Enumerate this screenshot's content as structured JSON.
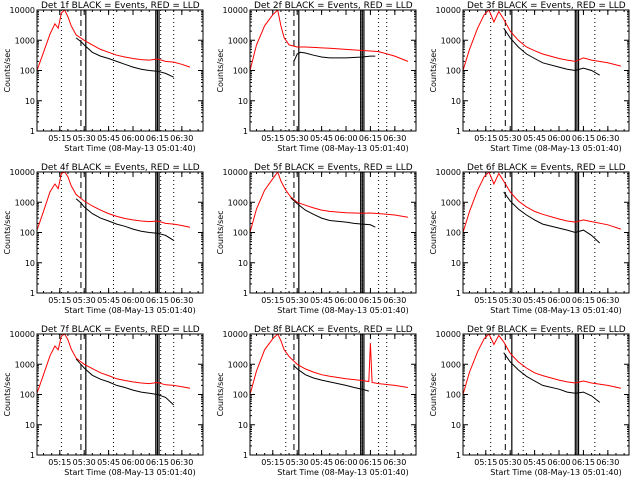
{
  "chart_data": {
    "type": "line",
    "layout": "3x3",
    "legend": "BLACK = Events, RED = LLD",
    "ylabel": "Counts/sec",
    "xlabel_prefix": "Start Time",
    "start_time_label": "(08-May-13 05:01:40)",
    "yscale": "log",
    "ylim": [
      1,
      10000
    ],
    "yticks": [
      {
        "v": 1,
        "label": "1"
      },
      {
        "v": 10,
        "label": "10"
      },
      {
        "v": 100,
        "label": "100"
      },
      {
        "v": 1000,
        "label": "1000"
      },
      {
        "v": 10000,
        "label": "10000"
      }
    ],
    "xlim": [
      "05:01",
      "06:43"
    ],
    "xticks": [
      "05:15",
      "05:30",
      "05:45",
      "06:00",
      "06:15",
      "06:30"
    ],
    "colors": {
      "events": "#000000",
      "lld": "#ff0000"
    },
    "panels": [
      {
        "title": "Det 1f",
        "vlines": {
          "dotted": [
            "05:16",
            "05:48",
            "06:17",
            "06:25"
          ],
          "dashed": [
            "05:28"
          ],
          "solid": [
            "05:31",
            "06:14",
            "06:15",
            "06:16"
          ]
        },
        "lld": {
          "x": [
            "05:01",
            "05:05",
            "05:09",
            "05:12",
            "05:14",
            "05:16",
            "05:18",
            "05:20",
            "05:22",
            "05:25",
            "05:30",
            "05:35",
            "05:40",
            "05:45",
            "05:50",
            "05:55",
            "06:00",
            "06:05",
            "06:10",
            "06:15",
            "06:20",
            "06:25",
            "06:30",
            "06:35"
          ],
          "y": [
            100,
            400,
            1600,
            3500,
            2500,
            8000,
            10000,
            6000,
            3000,
            1500,
            1000,
            700,
            500,
            400,
            320,
            280,
            250,
            230,
            220,
            240,
            200,
            190,
            160,
            130
          ]
        },
        "events": {
          "x": [
            "05:25",
            "05:28",
            "05:30",
            "05:35",
            "05:40",
            "05:45",
            "05:50",
            "05:55",
            "06:00",
            "06:05",
            "06:10",
            "06:15",
            "06:20",
            "06:25"
          ],
          "y": [
            1200,
            900,
            700,
            400,
            300,
            250,
            200,
            160,
            130,
            110,
            100,
            95,
            80,
            60
          ]
        }
      },
      {
        "title": "Det 2f",
        "vlines": {
          "dotted": [
            "05:23",
            "06:10",
            "06:20",
            "06:25"
          ],
          "dashed": [
            "05:28"
          ],
          "solid": [
            "05:31",
            "06:09",
            "06:10",
            "06:11"
          ]
        },
        "lld": {
          "x": [
            "05:01",
            "05:05",
            "05:10",
            "05:15",
            "05:18",
            "05:20",
            "05:22",
            "05:25",
            "05:30",
            "05:35",
            "05:40",
            "05:45",
            "05:50",
            "06:00",
            "06:10",
            "06:15",
            "06:20",
            "06:30",
            "06:38"
          ],
          "y": [
            100,
            700,
            3000,
            7000,
            10000,
            3000,
            1200,
            700,
            600,
            600,
            580,
            560,
            540,
            500,
            460,
            440,
            420,
            300,
            200
          ]
        },
        "events": {
          "x": [
            "05:28",
            "05:30",
            "05:32",
            "05:35",
            "05:40",
            "05:45",
            "05:50",
            "06:00",
            "06:10",
            "06:15",
            "06:18"
          ],
          "y": [
            200,
            350,
            400,
            380,
            320,
            280,
            260,
            260,
            280,
            300,
            300
          ]
        }
      },
      {
        "title": "Det 3f",
        "vlines": {
          "dotted": [
            "05:18",
            "05:38",
            "06:12",
            "06:22"
          ],
          "dashed": [
            "05:27"
          ],
          "solid": [
            "05:31",
            "06:10",
            "06:11",
            "06:12"
          ]
        },
        "lld": {
          "x": [
            "05:01",
            "05:05",
            "05:10",
            "05:14",
            "05:17",
            "05:20",
            "05:23",
            "05:26",
            "05:30",
            "05:35",
            "05:40",
            "05:45",
            "05:50",
            "06:00",
            "06:05",
            "06:10",
            "06:15",
            "06:20",
            "06:30",
            "06:38"
          ],
          "y": [
            100,
            500,
            2500,
            7000,
            10000,
            4000,
            9000,
            5000,
            2000,
            1000,
            600,
            450,
            350,
            250,
            220,
            200,
            260,
            220,
            180,
            140
          ]
        },
        "events": {
          "x": [
            "05:26",
            "05:30",
            "05:35",
            "05:40",
            "05:45",
            "05:50",
            "06:00",
            "06:05",
            "06:10",
            "06:15",
            "06:20",
            "06:25"
          ],
          "y": [
            2500,
            1200,
            600,
            350,
            250,
            180,
            130,
            110,
            100,
            120,
            100,
            70
          ]
        }
      },
      {
        "title": "Det 4f",
        "vlines": {
          "dotted": [
            "05:16",
            "05:48",
            "06:17",
            "06:25"
          ],
          "dashed": [
            "05:28"
          ],
          "solid": [
            "05:31",
            "06:14",
            "06:15",
            "06:16"
          ]
        },
        "lld": {
          "x": [
            "05:01",
            "05:05",
            "05:09",
            "05:12",
            "05:14",
            "05:16",
            "05:18",
            "05:20",
            "05:22",
            "05:25",
            "05:30",
            "05:35",
            "05:40",
            "05:45",
            "05:50",
            "05:55",
            "06:00",
            "06:05",
            "06:10",
            "06:15",
            "06:20",
            "06:25",
            "06:30",
            "06:35"
          ],
          "y": [
            120,
            500,
            2200,
            4000,
            2800,
            9000,
            10000,
            7000,
            3500,
            1800,
            1100,
            750,
            550,
            420,
            340,
            290,
            260,
            240,
            230,
            240,
            200,
            190,
            170,
            150
          ]
        },
        "events": {
          "x": [
            "05:25",
            "05:28",
            "05:30",
            "05:35",
            "05:40",
            "05:45",
            "05:50",
            "05:55",
            "06:00",
            "06:05",
            "06:10",
            "06:15",
            "06:20",
            "06:25"
          ],
          "y": [
            1300,
            950,
            700,
            420,
            300,
            240,
            190,
            160,
            130,
            110,
            100,
            95,
            80,
            55
          ]
        }
      },
      {
        "title": "Det 5f",
        "vlines": {
          "dotted": [
            "05:23",
            "06:10",
            "06:20",
            "06:25"
          ],
          "dashed": [
            "05:28"
          ],
          "solid": [
            "05:31",
            "06:09",
            "06:10",
            "06:11"
          ]
        },
        "lld": {
          "x": [
            "05:01",
            "05:05",
            "05:10",
            "05:15",
            "05:18",
            "05:20",
            "05:23",
            "05:26",
            "05:30",
            "05:35",
            "05:40",
            "05:45",
            "05:50",
            "06:00",
            "06:10",
            "06:15",
            "06:20",
            "06:30",
            "06:38"
          ],
          "y": [
            100,
            600,
            2500,
            6000,
            10000,
            5000,
            2500,
            1500,
            1000,
            800,
            650,
            550,
            500,
            450,
            430,
            440,
            420,
            380,
            320
          ]
        },
        "events": {
          "x": [
            "05:26",
            "05:30",
            "05:35",
            "05:40",
            "05:45",
            "05:50",
            "06:00",
            "06:05",
            "06:10",
            "06:15",
            "06:18"
          ],
          "y": [
            1400,
            900,
            550,
            400,
            300,
            250,
            220,
            200,
            190,
            180,
            150
          ]
        }
      },
      {
        "title": "Det 6f",
        "vlines": {
          "dotted": [
            "05:18",
            "05:38",
            "06:12",
            "06:22"
          ],
          "dashed": [
            "05:27"
          ],
          "solid": [
            "05:31",
            "06:10",
            "06:11",
            "06:12"
          ]
        },
        "lld": {
          "x": [
            "05:01",
            "05:05",
            "05:10",
            "05:14",
            "05:17",
            "05:20",
            "05:23",
            "05:26",
            "05:30",
            "05:35",
            "05:40",
            "05:45",
            "05:50",
            "06:00",
            "06:05",
            "06:10",
            "06:15",
            "06:20",
            "06:30",
            "06:38"
          ],
          "y": [
            100,
            500,
            2500,
            7000,
            10000,
            4000,
            9000,
            5000,
            2200,
            1100,
            700,
            500,
            400,
            280,
            240,
            220,
            260,
            230,
            180,
            130
          ]
        },
        "events": {
          "x": [
            "05:26",
            "05:30",
            "05:35",
            "05:40",
            "05:45",
            "05:50",
            "06:00",
            "06:05",
            "06:10",
            "06:15",
            "06:20",
            "06:25"
          ],
          "y": [
            2200,
            1100,
            600,
            380,
            260,
            190,
            140,
            120,
            100,
            120,
            80,
            45
          ]
        }
      },
      {
        "title": "Det 7f",
        "vlines": {
          "dotted": [
            "05:16",
            "05:48",
            "06:17",
            "06:25"
          ],
          "dashed": [
            "05:28"
          ],
          "solid": [
            "05:31",
            "06:14",
            "06:15",
            "06:16"
          ]
        },
        "lld": {
          "x": [
            "05:01",
            "05:05",
            "05:09",
            "05:12",
            "05:14",
            "05:16",
            "05:18",
            "05:20",
            "05:22",
            "05:25",
            "05:30",
            "05:35",
            "05:40",
            "05:45",
            "05:50",
            "05:55",
            "06:00",
            "06:05",
            "06:10",
            "06:15",
            "06:20",
            "06:25",
            "06:30",
            "06:35"
          ],
          "y": [
            110,
            450,
            1900,
            4000,
            3000,
            8500,
            10000,
            6500,
            3200,
            1600,
            1000,
            720,
            520,
            420,
            330,
            290,
            260,
            240,
            230,
            250,
            210,
            200,
            180,
            160
          ]
        },
        "events": {
          "x": [
            "05:25",
            "05:28",
            "05:30",
            "05:35",
            "05:40",
            "05:45",
            "05:50",
            "05:55",
            "06:00",
            "06:05",
            "06:10",
            "06:15",
            "06:20",
            "06:25"
          ],
          "y": [
            1500,
            1000,
            750,
            430,
            320,
            260,
            200,
            170,
            140,
            120,
            110,
            100,
            80,
            45
          ]
        }
      },
      {
        "title": "Det 8f",
        "vlines": {
          "dotted": [
            "05:23",
            "06:10",
            "06:20",
            "06:25"
          ],
          "dashed": [
            "05:28"
          ],
          "solid": [
            "05:31",
            "06:09",
            "06:10",
            "06:11"
          ]
        },
        "lld": {
          "x": [
            "05:01",
            "05:05",
            "05:10",
            "05:15",
            "05:18",
            "05:20",
            "05:22",
            "05:25",
            "05:30",
            "05:35",
            "05:40",
            "05:45",
            "05:50",
            "06:00",
            "06:10",
            "06:14",
            "06:15",
            "06:16",
            "06:20",
            "06:30",
            "06:38"
          ],
          "y": [
            100,
            600,
            3000,
            7000,
            10000,
            6000,
            3000,
            1800,
            1000,
            700,
            550,
            450,
            400,
            330,
            290,
            270,
            5000,
            250,
            230,
            200,
            170
          ]
        },
        "events": {
          "x": [
            "05:28",
            "05:30",
            "05:35",
            "05:40",
            "05:45",
            "05:50",
            "06:00",
            "06:05",
            "06:10",
            "06:14"
          ],
          "y": [
            900,
            700,
            450,
            350,
            300,
            260,
            200,
            170,
            150,
            130
          ]
        }
      },
      {
        "title": "Det 9f",
        "vlines": {
          "dotted": [
            "05:18",
            "05:38",
            "06:12",
            "06:22"
          ],
          "dashed": [
            "05:27"
          ],
          "solid": [
            "05:31",
            "06:10",
            "06:11",
            "06:12"
          ]
        },
        "lld": {
          "x": [
            "05:01",
            "05:05",
            "05:10",
            "05:14",
            "05:17",
            "05:20",
            "05:23",
            "05:26",
            "05:30",
            "05:35",
            "05:40",
            "05:45",
            "05:50",
            "06:00",
            "06:05",
            "06:10",
            "06:15",
            "06:20",
            "06:30",
            "06:38"
          ],
          "y": [
            100,
            550,
            2600,
            7000,
            10000,
            4500,
            9000,
            5500,
            2300,
            1200,
            750,
            520,
            420,
            300,
            260,
            240,
            280,
            240,
            200,
            160
          ]
        },
        "events": {
          "x": [
            "05:26",
            "05:30",
            "05:35",
            "05:40",
            "05:45",
            "05:50",
            "06:00",
            "06:05",
            "06:10",
            "06:15",
            "06:20",
            "06:25"
          ],
          "y": [
            2400,
            1200,
            650,
            400,
            280,
            200,
            150,
            120,
            110,
            120,
            90,
            55
          ]
        }
      }
    ]
  }
}
